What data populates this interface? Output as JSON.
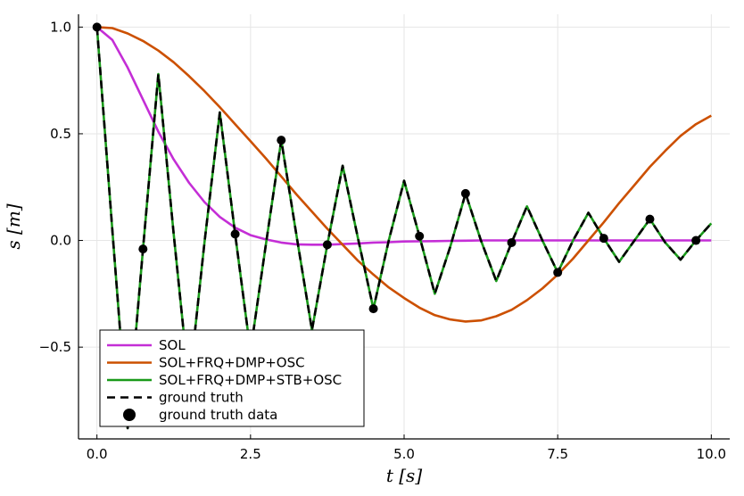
{
  "chart_data": {
    "type": "line",
    "title": "",
    "xlabel": "t [s]",
    "ylabel": "s [m]",
    "xlim": [
      -0.3,
      10.3
    ],
    "ylim": [
      -0.93,
      1.06
    ],
    "xticks": [
      0,
      2.5,
      5,
      7.5,
      10
    ],
    "xtick_labels": [
      "0.0",
      "2.5",
      "5.0",
      "7.5",
      "10.0"
    ],
    "yticks": [
      -0.5,
      0,
      0.5,
      1
    ],
    "ytick_labels": [
      "−0.5",
      "0.0",
      "0.5",
      "1.0"
    ],
    "grid": true,
    "legend_position": "bottom-left",
    "x": [
      0,
      0.25,
      0.5,
      0.75,
      1,
      1.25,
      1.5,
      1.75,
      2,
      2.25,
      2.5,
      2.75,
      3,
      3.25,
      3.5,
      3.75,
      4,
      4.25,
      4.5,
      4.75,
      5,
      5.25,
      5.5,
      5.75,
      6,
      6.25,
      6.5,
      6.75,
      7,
      7.25,
      7.5,
      7.75,
      8,
      8.25,
      8.5,
      8.75,
      9,
      9.25,
      9.5,
      9.75,
      10
    ],
    "series": [
      {
        "name": "SOL",
        "color": "#c42ed6",
        "style": "solid",
        "values": [
          1.0,
          0.94,
          0.81,
          0.66,
          0.51,
          0.38,
          0.27,
          0.18,
          0.11,
          0.06,
          0.025,
          0.005,
          -0.01,
          -0.018,
          -0.02,
          -0.02,
          -0.017,
          -0.014,
          -0.01,
          -0.008,
          -0.005,
          -0.004,
          -0.003,
          -0.002,
          -0.001,
          0,
          0,
          0,
          0,
          0,
          0,
          0,
          0,
          0,
          0,
          0,
          0,
          0,
          0,
          0,
          0
        ]
      },
      {
        "name": "SOL+FRQ+DMP+OSC",
        "color": "#cc5000",
        "style": "solid",
        "values": [
          1.0,
          0.995,
          0.97,
          0.935,
          0.89,
          0.835,
          0.77,
          0.7,
          0.625,
          0.545,
          0.465,
          0.385,
          0.3,
          0.215,
          0.135,
          0.055,
          -0.02,
          -0.095,
          -0.16,
          -0.22,
          -0.27,
          -0.315,
          -0.35,
          -0.37,
          -0.38,
          -0.375,
          -0.355,
          -0.325,
          -0.28,
          -0.225,
          -0.16,
          -0.085,
          0.0,
          0.085,
          0.175,
          0.26,
          0.345,
          0.42,
          0.49,
          0.545,
          0.585
        ]
      },
      {
        "name": "SOL+FRQ+DMP+STB+OSC",
        "color": "#1a9a1a",
        "style": "solid",
        "values": [
          1.0,
          0.05,
          -0.88,
          -0.04,
          0.78,
          0.03,
          -0.68,
          -0.01,
          0.6,
          0.03,
          -0.52,
          -0.02,
          0.47,
          0.02,
          -0.42,
          -0.02,
          0.35,
          0.01,
          -0.32,
          0.0,
          0.28,
          0.02,
          -0.25,
          -0.03,
          0.22,
          0.0,
          -0.19,
          -0.01,
          0.16,
          0.0,
          -0.15,
          0.0,
          0.13,
          0.01,
          -0.1,
          0.0,
          0.1,
          -0.01,
          -0.09,
          0.0,
          0.08
        ]
      },
      {
        "name": "ground truth",
        "color": "#000000",
        "style": "dashed",
        "values": [
          1.0,
          0.05,
          -0.88,
          -0.04,
          0.78,
          0.03,
          -0.68,
          -0.01,
          0.6,
          0.03,
          -0.52,
          -0.02,
          0.47,
          0.02,
          -0.42,
          -0.02,
          0.35,
          0.01,
          -0.32,
          0.0,
          0.28,
          0.02,
          -0.25,
          -0.03,
          0.22,
          0.0,
          -0.19,
          -0.01,
          0.16,
          0.0,
          -0.15,
          0.0,
          0.13,
          0.01,
          -0.1,
          0.0,
          0.1,
          -0.01,
          -0.09,
          0.0,
          0.08
        ]
      }
    ],
    "scatter": {
      "name": "ground truth data",
      "color": "#000000",
      "points": [
        {
          "x": 0.0,
          "y": 1.0
        },
        {
          "x": 0.75,
          "y": -0.04
        },
        {
          "x": 1.5,
          "y": -0.68
        },
        {
          "x": 2.25,
          "y": 0.03
        },
        {
          "x": 3.0,
          "y": 0.47
        },
        {
          "x": 3.75,
          "y": -0.02
        },
        {
          "x": 4.5,
          "y": -0.32
        },
        {
          "x": 5.25,
          "y": 0.02
        },
        {
          "x": 6.0,
          "y": 0.22
        },
        {
          "x": 6.75,
          "y": -0.01
        },
        {
          "x": 7.5,
          "y": -0.15
        },
        {
          "x": 8.25,
          "y": 0.01
        },
        {
          "x": 9.0,
          "y": 0.1
        },
        {
          "x": 9.75,
          "y": -0.0
        }
      ]
    }
  }
}
